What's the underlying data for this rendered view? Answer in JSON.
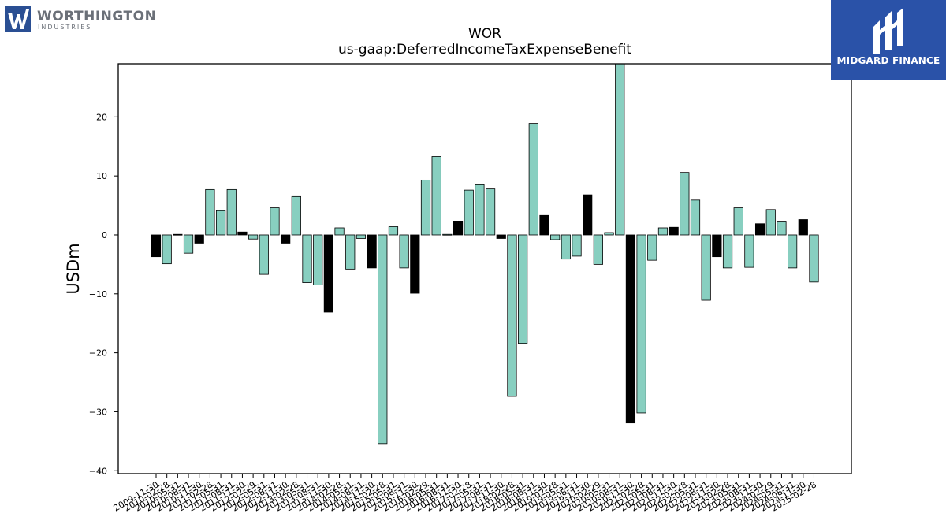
{
  "logos": {
    "left_name": "WORTHINGTON",
    "left_sub": "INDUSTRIES",
    "right_name": "MIDGARD FINANCE"
  },
  "colors": {
    "positive_bar": "#88cfc0",
    "negative_bar": "#000000",
    "axis": "#000000",
    "brand_blue": "#2a52a8",
    "left_logo_blue": "#2a4f93"
  },
  "chart_data": {
    "type": "bar",
    "title": "WOR",
    "subtitle": "us-gaap:DeferredIncomeTaxExpenseBenefit",
    "xlabel": "",
    "ylabel": "USDm",
    "ylim": [
      -40.5,
      29
    ],
    "yticks": [
      -40,
      -30,
      -20,
      -10,
      0,
      10,
      20
    ],
    "grid": false,
    "categories": [
      "2009-11-30",
      "2010-02-28",
      "2010-05-31",
      "2010-08-31",
      "2010-11-30",
      "2011-02-28",
      "2011-05-31",
      "2011-08-31",
      "2011-11-30",
      "2012-02-29",
      "2012-05-31",
      "2012-08-31",
      "2012-11-30",
      "2013-02-28",
      "2013-05-31",
      "2013-08-31",
      "2013-11-30",
      "2014-02-28",
      "2014-05-31",
      "2014-08-31",
      "2014-11-30",
      "2015-02-28",
      "2015-05-31",
      "2015-08-31",
      "2015-11-30",
      "2016-02-29",
      "2016-05-31",
      "2016-08-31",
      "2016-11-30",
      "2017-02-28",
      "2017-05-31",
      "2017-08-31",
      "2017-11-30",
      "2018-02-28",
      "2018-05-31",
      "2018-08-31",
      "2018-11-30",
      "2019-02-28",
      "2019-05-31",
      "2019-08-31",
      "2019-11-30",
      "2020-02-29",
      "2020-05-31",
      "2020-08-31",
      "2020-11-30",
      "2021-02-28",
      "2021-05-31",
      "2021-08-31",
      "2021-11-30",
      "2022-02-28",
      "2022-05-31",
      "2022-08-31",
      "2022-11-30",
      "2023-02-28",
      "2023-05-31",
      "2023-08-31",
      "2023-11-30",
      "2024-02-29",
      "2024-05-31",
      "2024-08-31",
      "2024-11-30",
      "2025-02-28"
    ],
    "series": [
      {
        "values": [
          -3.7,
          -4.9,
          0.1,
          -3.1,
          -1.4,
          7.7,
          4.1,
          7.7,
          0.5,
          -0.7,
          -6.7,
          4.6,
          -1.4,
          6.5,
          -8.1,
          -8.5,
          -13.1,
          1.2,
          -5.8,
          -0.6,
          -5.6,
          -35.4,
          1.4,
          -5.6,
          -9.9,
          9.3,
          13.3,
          0.1,
          2.3,
          7.6,
          8.5,
          7.8,
          -0.6,
          -27.4,
          -18.4,
          18.9,
          3.3,
          -0.8,
          -4.1,
          -3.6,
          6.8,
          -5.0,
          0.4,
          29.5,
          -31.9,
          -30.2,
          -4.3,
          1.2,
          1.3,
          10.6,
          5.9,
          -11.1,
          -3.7,
          -5.6,
          4.6,
          -5.5,
          1.9,
          4.3,
          2.2,
          -5.6,
          2.6,
          -8.0
        ],
        "highlight": [
          true,
          false,
          true,
          false,
          true,
          false,
          false,
          false,
          true,
          false,
          false,
          false,
          true,
          false,
          false,
          false,
          true,
          false,
          false,
          false,
          true,
          false,
          false,
          false,
          true,
          false,
          false,
          false,
          true,
          false,
          false,
          false,
          true,
          false,
          false,
          false,
          true,
          false,
          false,
          false,
          true,
          false,
          false,
          false,
          true,
          false,
          false,
          false,
          true,
          false,
          false,
          false,
          true,
          false,
          false,
          false,
          true,
          false,
          false,
          false,
          true,
          false
        ]
      }
    ]
  }
}
